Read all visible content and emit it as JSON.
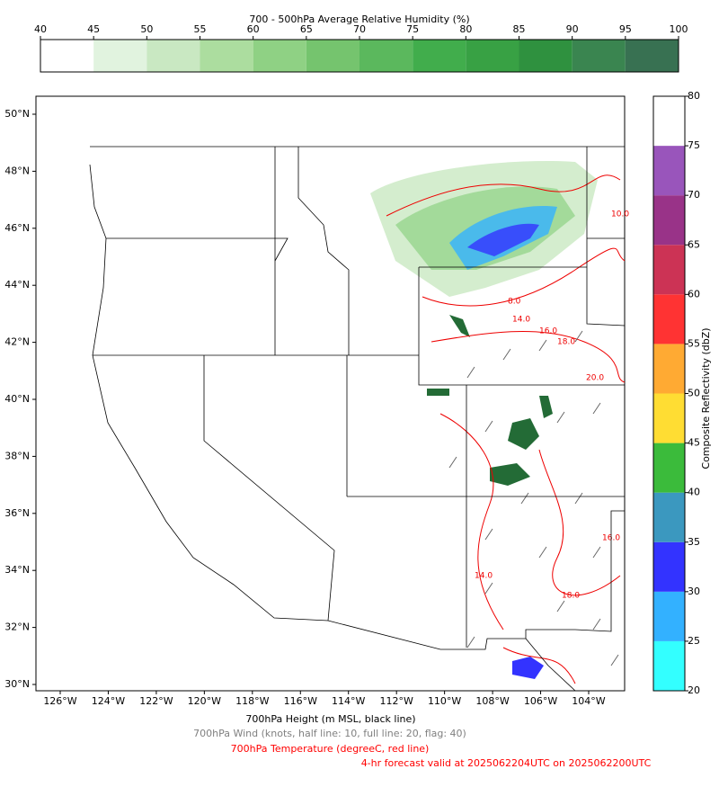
{
  "rh_colorbar": {
    "title": "700 - 500hPa Average Relative Humidity (%)",
    "ticks": [
      40,
      45,
      50,
      55,
      60,
      65,
      70,
      75,
      80,
      85,
      90,
      95,
      100
    ],
    "colors": [
      "#ffffff",
      "#e1f3df",
      "#c9e8c2",
      "#acdd9f",
      "#8fd184",
      "#75c46e",
      "#5bb85d",
      "#41ad4c",
      "#38a144",
      "#2f913f",
      "#3a8550",
      "#387152"
    ]
  },
  "reflectivity_colorbar": {
    "label": "Composite Reflectivity (dbZ)",
    "ticks": [
      20,
      25,
      30,
      35,
      40,
      45,
      50,
      55,
      60,
      65,
      70,
      75,
      80
    ],
    "colors": [
      "#33ffff",
      "#33b1ff",
      "#3333ff",
      "#3b98bf",
      "#3bbb3b",
      "#ffdd33",
      "#ffaa33",
      "#ff3333",
      "#cc3355",
      "#993388",
      "#9955bb",
      "#ffffff"
    ]
  },
  "map": {
    "lat_ticks": [
      {
        "value": 30,
        "label": "30°N"
      },
      {
        "value": 32,
        "label": "32°N"
      },
      {
        "value": 34,
        "label": "34°N"
      },
      {
        "value": 36,
        "label": "36°N"
      },
      {
        "value": 38,
        "label": "38°N"
      },
      {
        "value": 40,
        "label": "40°N"
      },
      {
        "value": 42,
        "label": "42°N"
      },
      {
        "value": 44,
        "label": "44°N"
      },
      {
        "value": 46,
        "label": "46°N"
      },
      {
        "value": 48,
        "label": "48°N"
      },
      {
        "value": 50,
        "label": "50°N"
      }
    ],
    "lon_ticks": [
      {
        "value": 126,
        "label": "126°W"
      },
      {
        "value": 124,
        "label": "124°W"
      },
      {
        "value": 122,
        "label": "122°W"
      },
      {
        "value": 120,
        "label": "120°W"
      },
      {
        "value": 118,
        "label": "118°W"
      },
      {
        "value": 116,
        "label": "116°W"
      },
      {
        "value": 114,
        "label": "114°W"
      },
      {
        "value": 112,
        "label": "112°W"
      },
      {
        "value": 110,
        "label": "110°W"
      },
      {
        "value": 108,
        "label": "108°W"
      },
      {
        "value": 106,
        "label": "106°W"
      },
      {
        "value": 104,
        "label": "104°W"
      }
    ],
    "contour_labels": [
      "14.0",
      "16.0",
      "18.0",
      "20.0",
      "10.0",
      "8.0",
      "16.0",
      "18.0",
      "14.0"
    ]
  },
  "captions": [
    {
      "text": "700hPa Height (m MSL, black line)",
      "color": "#000000"
    },
    {
      "text": "700hPa Wind (knots, half line: 10, full line: 20, flag: 40)",
      "color": "#808080"
    },
    {
      "text": "700hPa Temperature (degreeC, red line)",
      "color": "#ff0000"
    },
    {
      "text": "4-hr forecast valid at 2025062204UTC on 2025062200UTC",
      "color": "#ff0000"
    }
  ]
}
